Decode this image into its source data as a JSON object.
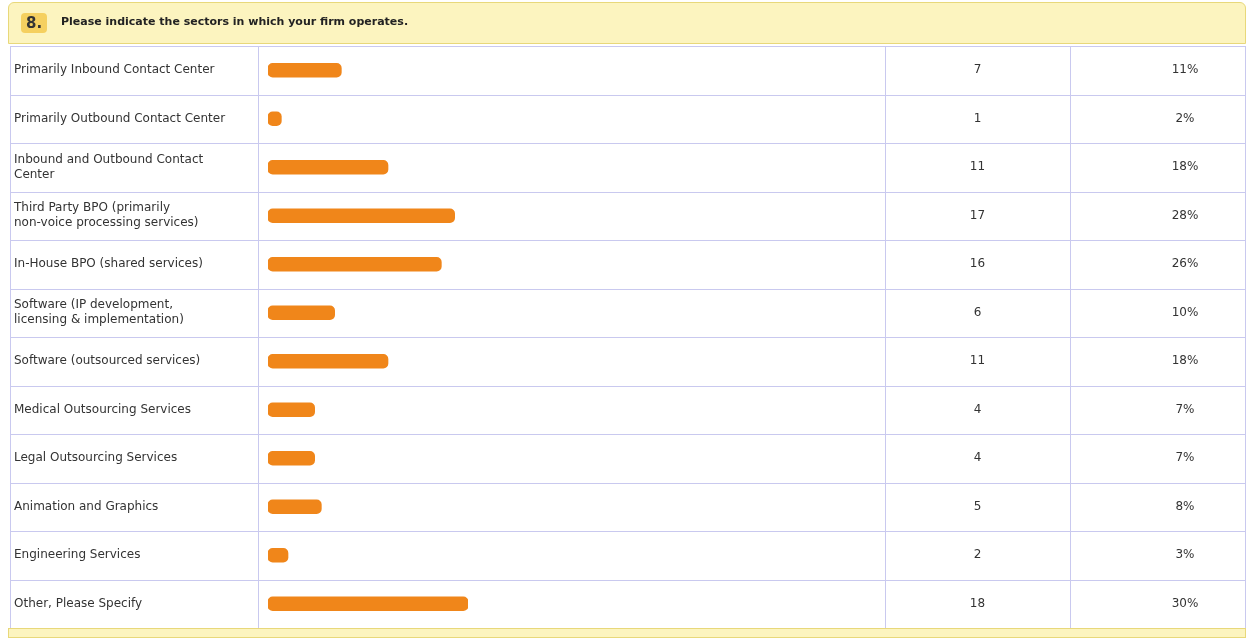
{
  "chart_data": {
    "type": "bar",
    "orientation": "horizontal",
    "title": "Please indicate the sectors in which your firm operates.",
    "subtitle": "8.",
    "categories": [
      "Primarily Inbound Contact Center",
      "Primarily Outbound Contact Center",
      "Inbound and Outbound Contact Center",
      "Third Party BPO (primarily non-voice processing services)",
      "In-House BPO (shared services)",
      "Software (IP development, licensing & implementation)",
      "Software (outsourced services)",
      "Medical Outsourcing Services",
      "Legal Outsourcing Services",
      "Animation and Graphics",
      "Engineering Services",
      "Other, Please Specify"
    ],
    "values": [
      11,
      2,
      18,
      28,
      26,
      10,
      18,
      7,
      7,
      8,
      3,
      30
    ],
    "annotations": [
      "7",
      "1",
      "11",
      "17",
      "16",
      "6",
      "11",
      "4",
      "4",
      "5",
      "2",
      "18"
    ],
    "value_labels": [
      "11%",
      "2%",
      "18%",
      "28%",
      "26%",
      "10%",
      "18%",
      "7%",
      "7%",
      "8%",
      "3%",
      "30%"
    ],
    "color": "#f0861a",
    "grid": true,
    "legend": false
  }
}
